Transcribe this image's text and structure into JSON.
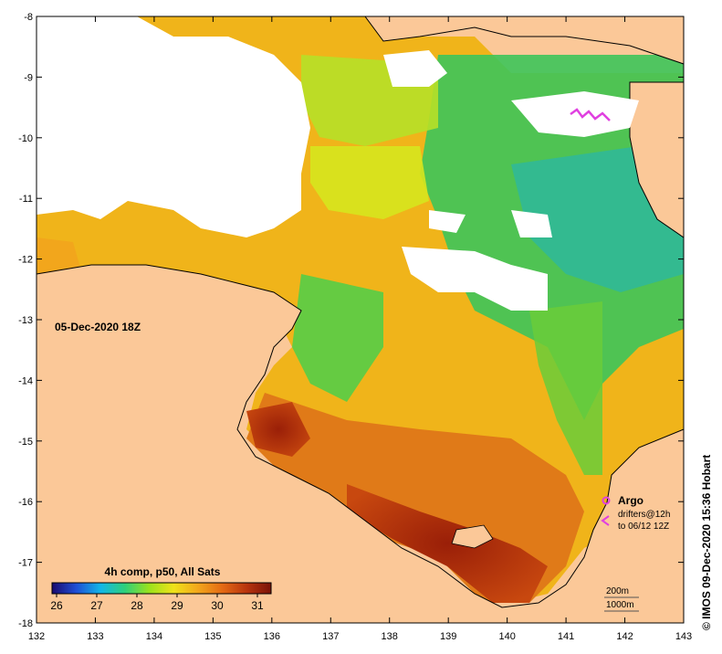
{
  "map": {
    "timestamp_label": "05-Dec-2020 18Z",
    "credit": "© IMOS 09-Dec-2020 15:36 Hobart",
    "x_ticks": [
      "132",
      "133",
      "134",
      "135",
      "136",
      "137",
      "138",
      "139",
      "140",
      "141",
      "142",
      "143"
    ],
    "y_ticks": [
      "-8",
      "-9",
      "-10",
      "-11",
      "-12",
      "-13",
      "-14",
      "-15",
      "-16",
      "-17",
      "-18"
    ],
    "colorbar": {
      "title": "4h comp, p50, All Sats",
      "labels": [
        "26",
        "27",
        "28",
        "29",
        "30",
        "31"
      ],
      "colors": [
        "#1a0a6e",
        "#1f4fd6",
        "#12b7e8",
        "#2fd07a",
        "#9be21c",
        "#f0e21a",
        "#f2a61c",
        "#e46a14",
        "#b8340e",
        "#7a1208"
      ]
    },
    "legend": {
      "argo_label": "Argo",
      "drifters_label": "drifters@12h",
      "drifters_range": "to 06/12 12Z",
      "argo_color": "#e040e0"
    },
    "depth": {
      "contour_1": "200m",
      "contour_2": "1000m"
    },
    "colors": {
      "land": "#fbc898",
      "cloud": "#ffffff",
      "warm": "#e07a18",
      "hot": "#b8340e",
      "mid": "#f0b41a",
      "cool_green": "#3dc45a",
      "yellowgreen": "#b6e028"
    }
  }
}
